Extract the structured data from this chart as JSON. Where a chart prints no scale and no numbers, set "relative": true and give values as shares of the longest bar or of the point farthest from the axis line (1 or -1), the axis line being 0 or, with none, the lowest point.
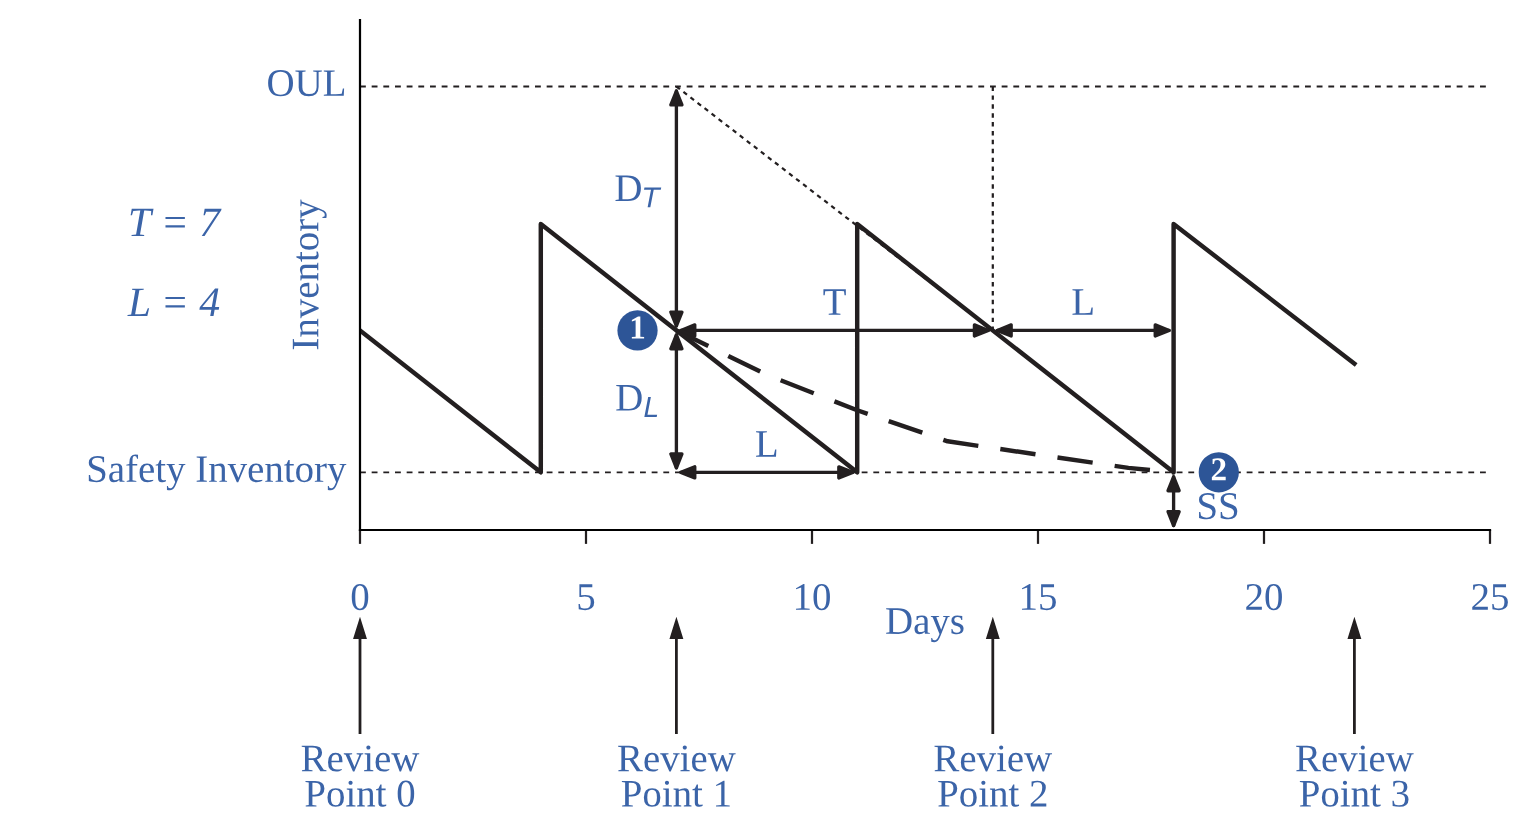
{
  "chart_data": {
    "type": "line",
    "relative": true,
    "xlabel": "Days",
    "ylabel": "Inventory",
    "xlim": [
      0,
      25
    ],
    "xticks": [
      0,
      5,
      10,
      15,
      20,
      25
    ],
    "grid": false,
    "legend": false,
    "series": [
      {
        "color": "#231f20",
        "line_style": "solid",
        "x": [
          0,
          4,
          4,
          11,
          11,
          18,
          18,
          22
        ],
        "values": [
          0.45,
          0.13,
          0.69,
          0.13,
          0.69,
          0.13,
          0.69,
          0.375
        ]
      },
      {
        "color": "#231f20",
        "line_style": "dashed",
        "x": [
          7,
          9,
          11,
          13,
          15,
          17,
          18
        ],
        "values": [
          0.45,
          0.35,
          0.27,
          0.2,
          0.17,
          0.14,
          0.13
        ]
      },
      {
        "color": "#231f20",
        "line_style": "dotted",
        "x": [
          7,
          14
        ],
        "values": [
          1,
          0.45
        ]
      },
      {
        "color": "#231f20",
        "line_style": "dotted",
        "x": [
          14,
          14
        ],
        "values": [
          1,
          0.45
        ]
      }
    ],
    "ref_lines": [
      {
        "axis": "y",
        "value": 0.13,
        "label": "Safety Inventory",
        "color": "#231f20",
        "line_style": "dashed"
      },
      {
        "axis": "y",
        "value": 1,
        "label": "OUL",
        "color": "#231f20",
        "line_style": "dashed"
      }
    ],
    "annotations": [
      "T = 7",
      "L = 4",
      "D$_{T}$",
      "D$_{L}$",
      "T",
      "L",
      "L",
      "SS",
      "1",
      "2",
      "Review\nPoint 0",
      "Review\nPoint 1",
      "Review\nPoint 2",
      "Review\nPoint 3"
    ]
  }
}
